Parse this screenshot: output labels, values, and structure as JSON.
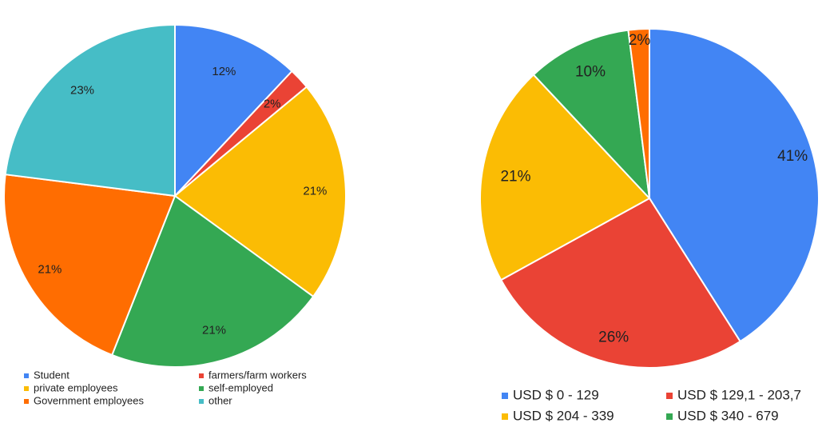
{
  "chart_data": [
    {
      "type": "pie",
      "title": "",
      "start_angle_deg": 0,
      "direction": "clockwise",
      "slices": [
        {
          "label": "Student",
          "value": 12,
          "display": "12%",
          "color": "#4285F4"
        },
        {
          "label": "farmers/farm workers",
          "value": 2,
          "display": "2%",
          "color": "#EA4335"
        },
        {
          "label": "private employees",
          "value": 21,
          "display": "21%",
          "color": "#FBBC04"
        },
        {
          "label": "self-employed",
          "value": 21,
          "display": "21%",
          "color": "#34A853"
        },
        {
          "label": "Government employees",
          "value": 21,
          "display": "21%",
          "color": "#FF6D01"
        },
        {
          "label": "other",
          "value": 23,
          "display": "23%",
          "color": "#46BDC6"
        }
      ],
      "legend": {
        "placement": "bottom",
        "columns": 2,
        "entries": [
          "Student",
          "farmers/farm workers",
          "private employees",
          "self-employed",
          "Government employees",
          "other"
        ]
      }
    },
    {
      "type": "pie",
      "title": "",
      "start_angle_deg": 0,
      "direction": "clockwise",
      "slices": [
        {
          "label": "USD $ 0 - 129",
          "value": 41,
          "display": "41%",
          "color": "#4285F4"
        },
        {
          "label": "USD $ 129,1 - 203,7",
          "value": 26,
          "display": "26%",
          "color": "#EA4335"
        },
        {
          "label": "USD $ 204 - 339",
          "value": 21,
          "display": "21%",
          "color": "#FBBC04"
        },
        {
          "label": "USD $ 340 - 679",
          "value": 10,
          "display": "10%",
          "color": "#34A853"
        },
        {
          "label": "",
          "value": 2,
          "display": "2%",
          "color": "#FF6D01"
        }
      ],
      "legend": {
        "placement": "bottom",
        "columns": 2,
        "entries": [
          "USD $ 0 - 129",
          "USD $ 129,1 - 203,7",
          "USD $ 204 - 339",
          "USD $ 340 - 679"
        ]
      }
    }
  ]
}
